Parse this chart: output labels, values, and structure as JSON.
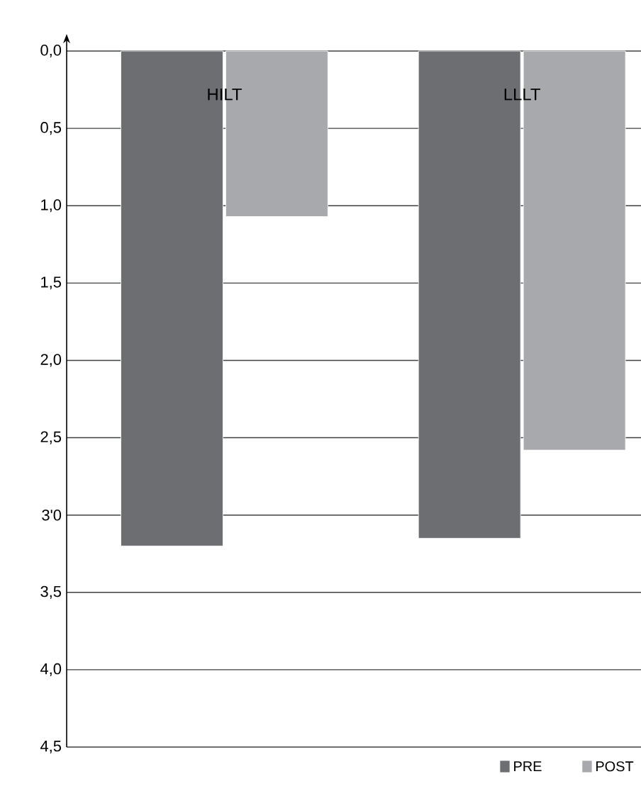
{
  "chart_data": {
    "type": "bar",
    "categories": [
      "HILT",
      "LLLT"
    ],
    "series": [
      {
        "name": "PRE",
        "color": "#6d6e71",
        "values": [
          3.2,
          3.15
        ]
      },
      {
        "name": "POST",
        "color": "#a7a9ac",
        "values": [
          1.07,
          2.58
        ]
      }
    ],
    "ylim": [
      4.5,
      0
    ],
    "yticks": [
      {
        "value": 0,
        "label": "0,0"
      },
      {
        "value": 0.5,
        "label": "0,5"
      },
      {
        "value": 1,
        "label": "1,0"
      },
      {
        "value": 1.5,
        "label": "1,5"
      },
      {
        "value": 2,
        "label": "2,0"
      },
      {
        "value": 2.5,
        "label": "2,5"
      },
      {
        "value": 3,
        "label": "3'0"
      },
      {
        "value": 3.5,
        "label": "3,5"
      },
      {
        "value": 4,
        "label": "4,0"
      },
      {
        "value": 4.5,
        "label": "4,5"
      }
    ],
    "grid": "y",
    "legend": "bottom right"
  }
}
